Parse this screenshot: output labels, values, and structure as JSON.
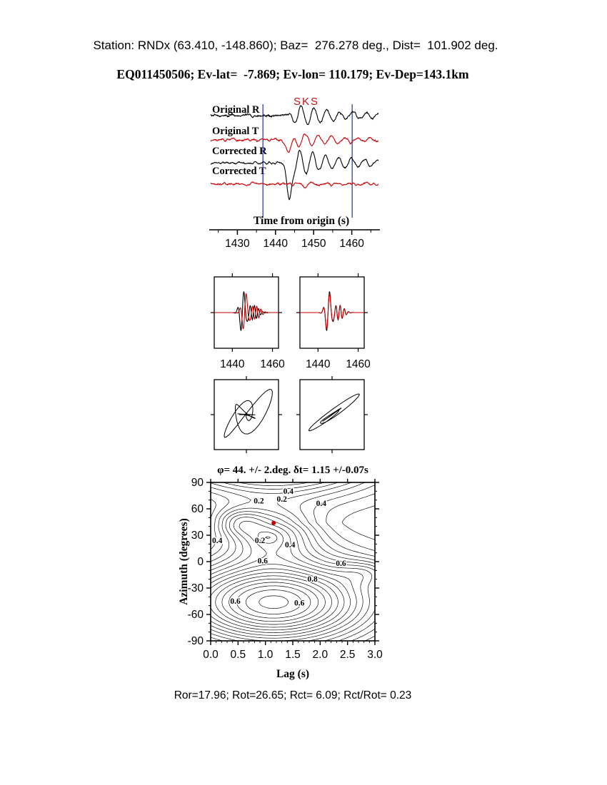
{
  "header": {
    "station_line": "Station: RNDx (63.410, -148.860); Baz=  276.278 deg., Dist=  101.902 deg.",
    "event_line": "EQ011450506; Ev-lat=  -7.869; Ev-lon= 110.179; Ev-Dep=143.1km",
    "station": "RNDx",
    "station_lat": 63.41,
    "station_lon": -148.86,
    "backazimuth_deg": 276.278,
    "distance_deg": 101.902,
    "event_id": "EQ011450506",
    "event_lat": -7.869,
    "event_lon": 110.179,
    "event_depth_km": 143.1
  },
  "footer": {
    "stats_line": "Ror=17.96; Rot=26.65; Rct= 6.09; Rct/Rot= 0.23",
    "Ror": 17.96,
    "Rot": 26.65,
    "Rct": 6.09,
    "Rct_over_Rot": 0.23
  },
  "chart_data": [
    {
      "id": "waveform-panel",
      "type": "line",
      "xlabel": "Time from origin (s)",
      "phase_label": "SKS",
      "phase_time": 1446,
      "x_range": [
        1423,
        1467
      ],
      "x_ticks": [
        1430,
        1440,
        1450,
        1460
      ],
      "x_minor_ticks": [
        1425,
        1435,
        1445,
        1455,
        1465
      ],
      "window_s": [
        1436.7,
        1460.1
      ],
      "window_color": "#2233aa",
      "series": [
        {
          "name": "Original R",
          "color": "#000000",
          "amp": 13,
          "phase": 0.3,
          "noise": 1.2,
          "seed": 7
        },
        {
          "name": "Original T",
          "color": "#cc0000",
          "amp": 9,
          "phase": -1.8,
          "noise": 1.0,
          "seed": 13,
          "spike": {
            "amp": -17,
            "t": 1443.4,
            "w": 1.0
          }
        },
        {
          "name": "Corrected R",
          "color": "#000000",
          "amp": 15,
          "phase": 0.9,
          "noise": 1.0,
          "seed": 21,
          "spike": {
            "amp": -52,
            "t": 1443.6,
            "w": 0.9
          }
        },
        {
          "name": "Corrected T",
          "color": "#cc0000",
          "amp": 3,
          "phase": 1.5,
          "noise": 1.0,
          "seed": 29
        }
      ]
    },
    {
      "id": "waveform-compare-panels",
      "type": "line",
      "x_range": [
        1431,
        1463
      ],
      "x_ticks": [
        1440,
        1460
      ],
      "pulse_time": 1445.3,
      "period_s": 3.2,
      "colors": {
        "reference": "#000000",
        "shifted": "#cc0000"
      },
      "panels": [
        {
          "name": "fast-slow uncorrected",
          "red_shift_s": 1.15
        },
        {
          "name": "fast-slow corrected",
          "red_shift_s": 0
        }
      ]
    },
    {
      "id": "particle-motion-panels",
      "type": "line",
      "panels": [
        {
          "name": "original particle motion (elliptical)"
        },
        {
          "name": "corrected particle motion (linearized)"
        }
      ]
    },
    {
      "id": "splitting-error-surface",
      "type": "heatmap",
      "title": "φ= 44. +/- 2.deg. δt= 1.15 +/-0.07s",
      "phi_deg": 44,
      "phi_err_deg": 2,
      "dt_s": 1.15,
      "dt_err_s": 0.07,
      "xlabel": "Lag (s)",
      "ylabel": "Azimuth (degrees)",
      "xlim": [
        0,
        3
      ],
      "ylim": [
        -90,
        90
      ],
      "x_ticks": [
        "0.0",
        "0.5",
        "1.0",
        "1.5",
        "2.0",
        "2.5",
        "3.0"
      ],
      "y_ticks": [
        90,
        60,
        30,
        0,
        -30,
        -60,
        -90
      ],
      "contour_levels_min": 0.05,
      "contour_levels_max": 0.95,
      "contour_levels_step": 0.05,
      "best_fit": {
        "lag_s": 1.15,
        "azimuth_deg": 44,
        "marker_color": "#cc0000"
      },
      "contour_labels": [
        {
          "text": "0.4",
          "lag": 1.42,
          "az": 80
        },
        {
          "text": "0.2",
          "lag": 0.88,
          "az": 69
        },
        {
          "text": "0.2",
          "lag": 1.3,
          "az": 71
        },
        {
          "text": "0.4",
          "lag": 2.02,
          "az": 66
        },
        {
          "text": "0.4",
          "lag": 0.12,
          "az": 24
        },
        {
          "text": "0.2",
          "lag": 0.9,
          "az": 24
        },
        {
          "text": "0.4",
          "lag": 1.45,
          "az": 19
        },
        {
          "text": "0.6",
          "lag": 0.95,
          "az": 1
        },
        {
          "text": "0.6",
          "lag": 2.38,
          "az": -2
        },
        {
          "text": "0.8",
          "lag": 1.86,
          "az": -20
        },
        {
          "text": "0.6",
          "lag": 0.45,
          "az": -45
        },
        {
          "text": "0.6",
          "lag": 1.62,
          "az": -47
        }
      ]
    }
  ]
}
